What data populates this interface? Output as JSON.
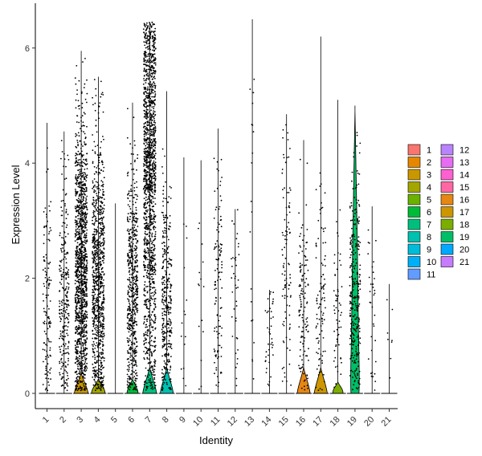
{
  "chart_data": {
    "type": "violin",
    "xlabel": "Identity",
    "ylabel": "Expression Level",
    "ylim": [
      -0.35,
      6.6
    ],
    "yticks": [
      "0",
      "2",
      "4",
      "6"
    ],
    "grid": false,
    "legend_position": "right",
    "categories": [
      "1",
      "2",
      "3",
      "4",
      "5",
      "6",
      "7",
      "8",
      "9",
      "10",
      "11",
      "12",
      "13",
      "14",
      "15",
      "16",
      "17",
      "18",
      "19",
      "20",
      "21"
    ],
    "colors": [
      "#F8766D",
      "#E58700",
      "#C99800",
      "#A3A500",
      "#6BB100",
      "#00BA38",
      "#00BF7D",
      "#00C0AF",
      "#00BCD8",
      "#00B0F6",
      "#619CFF",
      "#B983FF",
      "#E76BF3",
      "#FD61D1",
      "#FF67A4",
      "#E68613",
      "#CD9600",
      "#7CAE00",
      "#00BE67",
      "#00A9FF",
      "#C77CFF"
    ],
    "violin_max": [
      4.7,
      4.55,
      5.95,
      5.5,
      3.3,
      5.05,
      6.45,
      5.25,
      4.1,
      4.05,
      4.6,
      3.2,
      6.5,
      1.8,
      4.85,
      4.4,
      6.2,
      5.1,
      5.0,
      3.25,
      1.9
    ],
    "violin_bulge_height": [
      0,
      0,
      0.35,
      0.25,
      0,
      0.25,
      0.45,
      0.45,
      0,
      0,
      0,
      0,
      0,
      0,
      0,
      0.45,
      0.45,
      0.2,
      4.9,
      0,
      0
    ],
    "violin_bulge_width": [
      0,
      0,
      0.85,
      0.85,
      0,
      0.7,
      0.85,
      0.8,
      0,
      0,
      0,
      0,
      0,
      0,
      0,
      0.8,
      0.8,
      0.65,
      0.55,
      0,
      0
    ],
    "point_counts": [
      130,
      260,
      1300,
      900,
      0,
      600,
      1500,
      350,
      15,
      15,
      120,
      40,
      20,
      40,
      100,
      130,
      100,
      60,
      300,
      35,
      8
    ],
    "point_spread": [
      0.5,
      0.6,
      0.75,
      0.75,
      0,
      0.65,
      0.75,
      0.6,
      0.4,
      0.4,
      0.5,
      0.5,
      0.3,
      0.5,
      0.55,
      0.6,
      0.6,
      0.5,
      0.65,
      0.5,
      0.4
    ],
    "point_mean": [
      1.6,
      1.7,
      2.2,
      2.0,
      0,
      1.8,
      2.6,
      1.6,
      1.5,
      1.5,
      1.9,
      2.0,
      3.0,
      1.5,
      2.2,
      1.6,
      1.7,
      1.4,
      1.8,
      1.8,
      1.2
    ]
  },
  "legend": {
    "col1": [
      "1",
      "2",
      "3",
      "4",
      "5",
      "6",
      "7",
      "8",
      "9",
      "10",
      "11"
    ],
    "col2": [
      "12",
      "13",
      "14",
      "15",
      "16",
      "17",
      "18",
      "19",
      "20",
      "21"
    ]
  }
}
